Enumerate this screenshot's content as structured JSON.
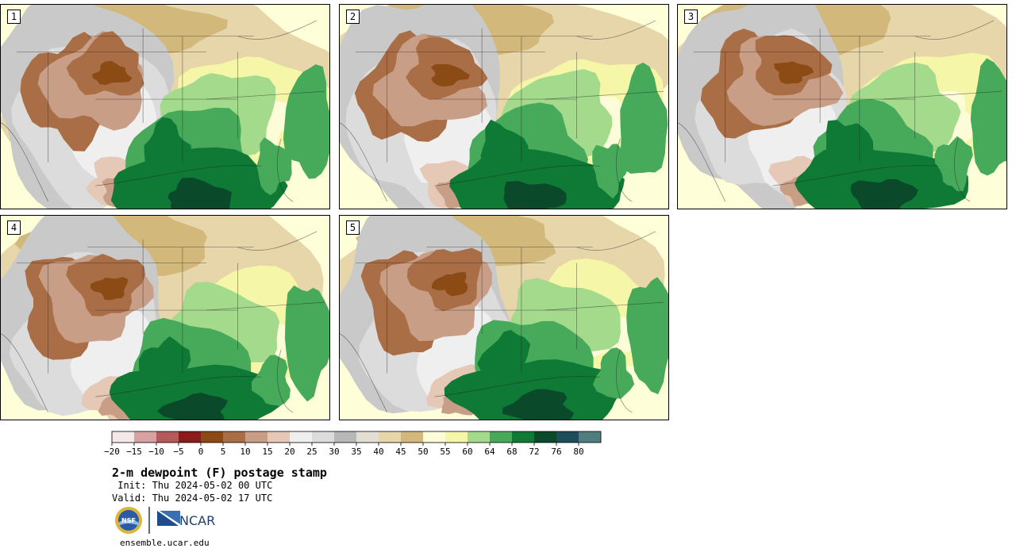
{
  "panels": [
    {
      "label": "1"
    },
    {
      "label": "2"
    },
    {
      "label": "3"
    },
    {
      "label": "4"
    },
    {
      "label": "5"
    }
  ],
  "colorbar": {
    "unit": "F",
    "ticks": [
      "−20",
      "−15",
      "−10",
      "−5",
      "0",
      "5",
      "10",
      "15",
      "20",
      "25",
      "30",
      "35",
      "40",
      "45",
      "50",
      "55",
      "60",
      "64",
      "68",
      "72",
      "76",
      "80"
    ],
    "colors": [
      "#f5e8e8",
      "#d8a2a2",
      "#b45a5a",
      "#8c1c1c",
      "#8c4a14",
      "#aa6e46",
      "#c89e86",
      "#e6c8b6",
      "#efefef",
      "#dcdcdc",
      "#b8b8b8",
      "#e2dfd2",
      "#e6d6aa",
      "#d2b87a",
      "#fcfcd8",
      "#f6f6a8",
      "#a4da8c",
      "#46aa5a",
      "#0e7a36",
      "#0a4a2a",
      "#1e4e5c",
      "#507e7e"
    ]
  },
  "title": "2-m dewpoint (F) postage stamp",
  "init": " Init: Thu 2024-05-02 00 UTC",
  "valid": "Valid: Thu 2024-05-02 17 UTC",
  "logos": {
    "nsf": "NSF",
    "ncar": "NCAR"
  },
  "website": "ensemble.ucar.edu"
}
